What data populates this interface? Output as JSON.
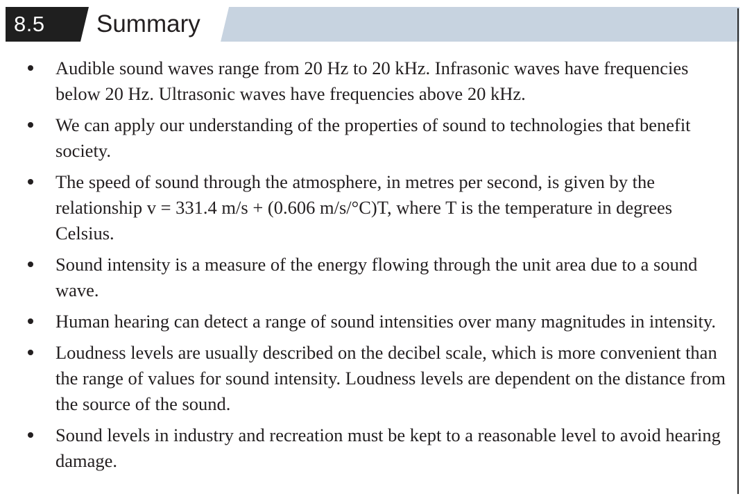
{
  "header": {
    "section_number": "8.5",
    "section_title": "Summary",
    "colors": {
      "number_box": "#1f1f1f",
      "title_band": "#c7d3e0",
      "title_text": "#231f20"
    }
  },
  "bullets": [
    {
      "text": "Audible sound waves range from 20 Hz to 20 kHz. Infrasonic waves have frequencies below 20 Hz. Ultrasonic waves have frequencies above 20 kHz."
    },
    {
      "text": "We can apply our understanding of the properties of sound to technologies that benefit society."
    },
    {
      "text": "The speed of sound through the atmosphere, in metres per second, is given by the relationship v = 331.4 m/s + (0.606 m/s/°C)T, where T is the temperature in degrees Celsius."
    },
    {
      "text": "Sound intensity is a measure of the energy flowing through the unit area due to a sound wave."
    },
    {
      "text": "Human hearing can detect a range of sound intensities over many magnitudes in intensity."
    },
    {
      "text": "Loudness levels are usually described on the decibel scale, which is more convenient than the range of values for sound intensity. Loudness levels are dependent on the distance from the source of the sound."
    },
    {
      "text": "Sound levels in industry and recreation must be kept to a reasonable level to avoid hearing damage."
    }
  ]
}
